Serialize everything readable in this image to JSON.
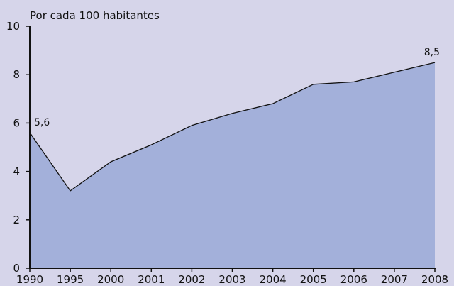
{
  "chart_data": {
    "type": "area",
    "ylabel": "Por cada 100 habitantes",
    "categories": [
      "1990",
      "1995",
      "2000",
      "2001",
      "2002",
      "2003",
      "2004",
      "2005",
      "2006",
      "2007",
      "2008"
    ],
    "series": [
      {
        "values": [
          5.6,
          3.2,
          4.4,
          5.1,
          5.9,
          6.4,
          6.8,
          7.6,
          7.7,
          8.1,
          8.5
        ]
      }
    ],
    "ylim": [
      0,
      10
    ],
    "yticks": [
      0,
      2,
      4,
      6,
      8,
      10
    ],
    "grid": false,
    "annotations": [
      {
        "index": 0,
        "text": "5,6"
      },
      {
        "index": 10,
        "text": "8,5"
      }
    ],
    "colors": {
      "background": "#d6d5ea",
      "fill": "#a3b0da",
      "line": "#111111",
      "axis": "#111111"
    }
  }
}
